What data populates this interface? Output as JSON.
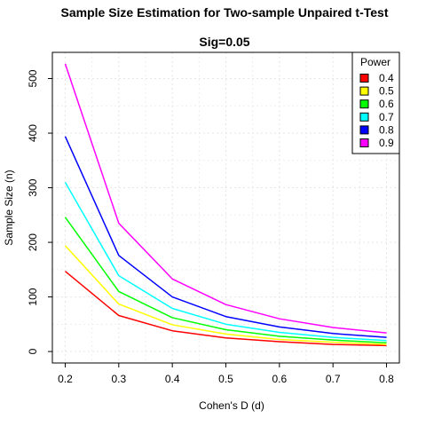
{
  "chart_data": {
    "type": "line",
    "title": "Sample Size Estimation for Two-sample Unpaired t-Test",
    "subtitle": "Sig=0.05",
    "xlabel": "Cohen's D (d)",
    "ylabel": "Sample Size (n)",
    "x": [
      0.2,
      0.3,
      0.4,
      0.5,
      0.6,
      0.7,
      0.8
    ],
    "x_ticks": [
      "0.2",
      "0.3",
      "0.4",
      "0.5",
      "0.6",
      "0.7",
      "0.8"
    ],
    "y_ticks": [
      "0",
      "100",
      "200",
      "300",
      "400",
      "500"
    ],
    "xlim": [
      0.176,
      0.824
    ],
    "ylim": [
      -21,
      548
    ],
    "grid": true,
    "legend": {
      "title": "Power",
      "placement": "top-right"
    },
    "series": [
      {
        "name": "0.4",
        "color": "#ff0000",
        "values": [
          147,
          66,
          38,
          25,
          18,
          13,
          11
        ]
      },
      {
        "name": "0.5",
        "color": "#ffff00",
        "values": [
          194,
          87,
          49,
          32,
          22,
          17,
          13
        ]
      },
      {
        "name": "0.6",
        "color": "#00ff00",
        "values": [
          246,
          110,
          62,
          40,
          28,
          21,
          16
        ]
      },
      {
        "name": "0.7",
        "color": "#00ffff",
        "values": [
          310,
          139,
          79,
          50,
          35,
          26,
          20
        ]
      },
      {
        "name": "0.8",
        "color": "#0000ff",
        "values": [
          394,
          176,
          100,
          64,
          45,
          33,
          26
        ]
      },
      {
        "name": "0.9",
        "color": "#ff00ff",
        "values": [
          527,
          235,
          133,
          86,
          60,
          44,
          34
        ]
      }
    ]
  }
}
